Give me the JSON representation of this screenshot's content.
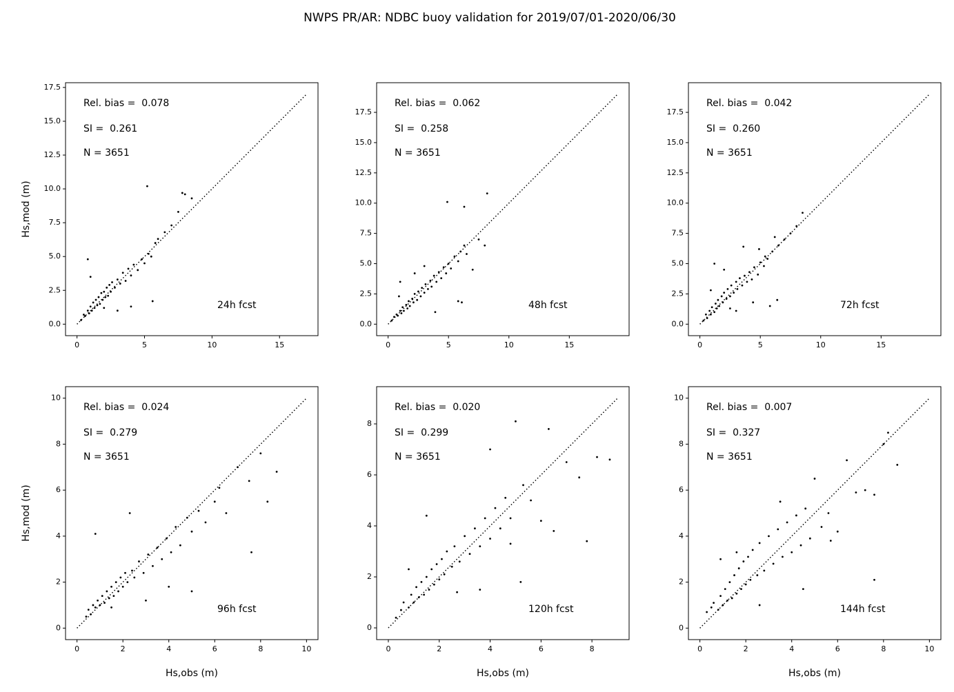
{
  "title": "NWPS PR/AR: NDBC buoy validation for 2019/07/01-2020/06/30",
  "chart_data": [
    {
      "type": "scatter",
      "color": "#000000",
      "ylabel": "Hs,mod (m)",
      "annotations": [
        "Rel. bias =  0.078",
        "SI =  0.261",
        "N = 3651",
        "24h fcst"
      ],
      "xlim": [
        -0.85,
        17.85
      ],
      "ylim": [
        -0.85,
        17.85
      ],
      "xticks": [
        0,
        5,
        10,
        15
      ],
      "yticks": [
        {
          "value": 0,
          "label": "0.0"
        },
        2.5,
        {
          "value": 5,
          "label": "5.0"
        },
        7.5,
        {
          "value": 10,
          "label": "10.0"
        },
        12.5,
        {
          "value": 15,
          "label": "15.0"
        },
        17.5
      ],
      "reference_line": {
        "x": [
          0,
          17
        ],
        "y": [
          0,
          17
        ]
      },
      "x": [
        0.3,
        0.5,
        0.6,
        0.8,
        0.9,
        1.0,
        1.1,
        1.2,
        1.3,
        1.4,
        1.5,
        1.6,
        1.7,
        1.8,
        1.9,
        2.0,
        2.1,
        2.2,
        2.3,
        2.4,
        2.5,
        2.6,
        2.8,
        3.0,
        3.2,
        3.4,
        3.6,
        3.8,
        4.0,
        4.2,
        4.5,
        4.8,
        5.0,
        5.3,
        5.5,
        5.8,
        6.0,
        6.5,
        7.0,
        7.5,
        7.8,
        8.0,
        8.5,
        0.8,
        1.0,
        2.0,
        3.0,
        4.0,
        5.2,
        5.6
      ],
      "y": [
        0.3,
        0.7,
        0.6,
        1.0,
        0.8,
        1.3,
        1.0,
        1.6,
        1.2,
        1.8,
        1.4,
        2.0,
        1.5,
        2.3,
        1.8,
        2.4,
        2.0,
        2.7,
        2.1,
        2.9,
        2.4,
        3.1,
        2.7,
        3.3,
        3.0,
        3.8,
        3.2,
        4.1,
        3.6,
        4.4,
        4.0,
        4.8,
        4.5,
        5.2,
        5.0,
        6.0,
        6.3,
        6.8,
        7.3,
        8.3,
        9.7,
        9.6,
        9.3,
        4.8,
        3.5,
        1.2,
        1.0,
        1.3,
        10.2,
        1.7
      ]
    },
    {
      "type": "scatter",
      "color": "#000000",
      "annotations": [
        "Rel. bias =  0.062",
        "SI =  0.258",
        "N = 3651",
        "48h fcst"
      ],
      "xlim": [
        -0.95,
        19.95
      ],
      "ylim": [
        -0.95,
        19.95
      ],
      "xticks": [
        0,
        5,
        10,
        15
      ],
      "yticks": [
        {
          "value": 0,
          "label": "0.0"
        },
        2.5,
        {
          "value": 5,
          "label": "5.0"
        },
        7.5,
        {
          "value": 10,
          "label": "10.0"
        },
        12.5,
        {
          "value": 15,
          "label": "15.0"
        },
        17.5
      ],
      "reference_line": {
        "x": [
          0,
          19
        ],
        "y": [
          0,
          19
        ]
      },
      "x": [
        0.3,
        0.5,
        0.7,
        0.8,
        1.0,
        1.1,
        1.2,
        1.3,
        1.5,
        1.6,
        1.7,
        1.8,
        2.0,
        2.1,
        2.2,
        2.4,
        2.5,
        2.7,
        2.8,
        3.0,
        3.1,
        3.3,
        3.5,
        3.6,
        3.8,
        4.0,
        4.2,
        4.4,
        4.6,
        4.8,
        5.0,
        5.2,
        5.5,
        5.8,
        6.0,
        6.3,
        6.5,
        7.0,
        7.5,
        8.0,
        4.9,
        6.3,
        8.2,
        1.0,
        2.2,
        3.9,
        5.8,
        6.1,
        0.9,
        3.0
      ],
      "y": [
        0.3,
        0.6,
        0.8,
        0.7,
        1.1,
        0.9,
        1.4,
        1.1,
        1.6,
        1.3,
        1.9,
        1.5,
        2.1,
        1.8,
        2.5,
        2.0,
        2.7,
        2.3,
        3.0,
        2.6,
        3.3,
        2.9,
        3.6,
        3.1,
        4.0,
        3.5,
        4.3,
        3.8,
        4.7,
        4.2,
        5.0,
        4.6,
        5.6,
        5.2,
        6.0,
        6.5,
        5.8,
        4.5,
        7.0,
        6.5,
        10.1,
        9.7,
        10.8,
        3.5,
        4.2,
        1.0,
        1.9,
        1.8,
        2.3,
        4.8
      ]
    },
    {
      "type": "scatter",
      "color": "#000000",
      "annotations": [
        "Rel. bias =  0.042",
        "SI =  0.260",
        "N = 3651",
        "72h fcst"
      ],
      "xlim": [
        -0.95,
        19.95
      ],
      "ylim": [
        -0.95,
        19.95
      ],
      "xticks": [
        0,
        5,
        10,
        15
      ],
      "yticks": [
        {
          "value": 0,
          "label": "0.0"
        },
        2.5,
        {
          "value": 5,
          "label": "5.0"
        },
        7.5,
        {
          "value": 10,
          "label": "10.0"
        },
        12.5,
        {
          "value": 15,
          "label": "15.0"
        },
        17.5
      ],
      "reference_line": {
        "x": [
          0,
          19
        ],
        "y": [
          0,
          19
        ]
      },
      "x": [
        0.3,
        0.5,
        0.6,
        0.8,
        0.9,
        1.0,
        1.2,
        1.3,
        1.4,
        1.5,
        1.6,
        1.8,
        1.9,
        2.0,
        2.2,
        2.3,
        2.5,
        2.6,
        2.8,
        3.0,
        3.1,
        3.3,
        3.5,
        3.7,
        3.9,
        4.1,
        4.3,
        4.5,
        4.8,
        5.0,
        5.3,
        5.6,
        6.0,
        6.5,
        7.0,
        7.5,
        8.0,
        8.5,
        1.2,
        2.0,
        3.0,
        4.4,
        5.8,
        6.2,
        0.9,
        2.5,
        3.6,
        4.9,
        5.4,
        6.4
      ],
      "y": [
        0.3,
        0.8,
        0.5,
        1.1,
        0.8,
        1.4,
        1.0,
        1.7,
        1.3,
        2.0,
        1.5,
        2.3,
        1.8,
        2.6,
        2.1,
        2.9,
        2.3,
        3.2,
        2.6,
        3.5,
        2.9,
        3.8,
        3.2,
        4.0,
        3.5,
        4.3,
        3.7,
        4.7,
        4.1,
        5.1,
        4.8,
        5.4,
        6.0,
        6.5,
        7.0,
        7.5,
        8.1,
        9.2,
        5.0,
        4.5,
        1.1,
        1.8,
        1.5,
        7.2,
        2.8,
        1.3,
        6.4,
        6.2,
        5.6,
        2.0
      ]
    },
    {
      "type": "scatter",
      "color": "#000000",
      "ylabel": "Hs,mod (m)",
      "xlabel": "Hs,obs (m)",
      "annotations": [
        "Rel. bias =  0.024",
        "SI =  0.279",
        "N = 3651",
        "96h fcst"
      ],
      "xlim": [
        -0.5,
        10.5
      ],
      "ylim": [
        -0.5,
        10.5
      ],
      "xticks": [
        0,
        2,
        4,
        6,
        8,
        10
      ],
      "yticks": [
        0,
        2,
        4,
        6,
        8,
        10
      ],
      "reference_line": {
        "x": [
          0,
          10
        ],
        "y": [
          0,
          10
        ]
      },
      "x": [
        0.4,
        0.5,
        0.6,
        0.7,
        0.8,
        0.9,
        1.0,
        1.1,
        1.2,
        1.3,
        1.4,
        1.5,
        1.6,
        1.7,
        1.8,
        1.9,
        2.0,
        2.1,
        2.2,
        2.4,
        2.5,
        2.7,
        2.9,
        3.1,
        3.3,
        3.5,
        3.7,
        3.9,
        4.1,
        4.3,
        4.5,
        4.8,
        5.0,
        5.3,
        5.6,
        6.0,
        6.2,
        6.5,
        7.0,
        7.5,
        8.0,
        8.3,
        8.7,
        0.8,
        1.5,
        2.3,
        3.0,
        4.0,
        5.0,
        7.6
      ],
      "y": [
        0.5,
        0.8,
        0.6,
        1.0,
        0.9,
        1.2,
        1.0,
        1.4,
        1.1,
        1.6,
        1.3,
        1.8,
        1.4,
        2.0,
        1.6,
        2.2,
        1.8,
        2.4,
        2.0,
        2.5,
        2.2,
        2.9,
        2.4,
        3.2,
        2.7,
        3.5,
        3.0,
        3.9,
        3.3,
        4.4,
        3.6,
        4.8,
        4.2,
        5.1,
        4.6,
        5.5,
        6.1,
        5.0,
        7.0,
        6.4,
        7.6,
        5.5,
        6.8,
        4.1,
        0.9,
        5.0,
        1.2,
        1.8,
        1.6,
        3.3
      ]
    },
    {
      "type": "scatter",
      "color": "#000000",
      "xlabel": "Hs,obs (m)",
      "annotations": [
        "Rel. bias =  0.020",
        "SI =  0.299",
        "N = 3651",
        "120h fcst"
      ],
      "xlim": [
        -0.46,
        9.46
      ],
      "ylim": [
        -0.46,
        9.46
      ],
      "xticks": [
        0,
        2,
        4,
        6,
        8
      ],
      "yticks": [
        0,
        2,
        4,
        6,
        8
      ],
      "reference_line": {
        "x": [
          0,
          9
        ],
        "y": [
          0,
          9
        ]
      },
      "x": [
        0.3,
        0.5,
        0.6,
        0.8,
        0.9,
        1.0,
        1.1,
        1.2,
        1.3,
        1.4,
        1.5,
        1.6,
        1.7,
        1.8,
        1.9,
        2.0,
        2.1,
        2.2,
        2.3,
        2.5,
        2.6,
        2.8,
        3.0,
        3.2,
        3.4,
        3.6,
        3.8,
        4.0,
        4.2,
        4.4,
        4.6,
        4.8,
        5.0,
        5.3,
        5.6,
        6.0,
        6.3,
        6.5,
        7.0,
        7.5,
        7.8,
        8.2,
        8.7,
        0.8,
        1.5,
        2.7,
        3.6,
        4.8,
        5.2,
        4.0
      ],
      "y": [
        0.4,
        0.7,
        1.0,
        0.8,
        1.3,
        1.0,
        1.6,
        1.2,
        1.8,
        1.3,
        2.0,
        1.5,
        2.3,
        1.7,
        2.5,
        1.9,
        2.7,
        2.1,
        3.0,
        2.4,
        3.2,
        2.6,
        3.6,
        2.9,
        3.9,
        3.2,
        4.3,
        3.5,
        4.7,
        3.9,
        5.1,
        4.3,
        8.1,
        5.6,
        5.0,
        4.2,
        7.8,
        3.8,
        6.5,
        5.9,
        3.4,
        6.7,
        6.6,
        2.3,
        4.4,
        1.4,
        1.5,
        3.3,
        1.8,
        7.0
      ]
    },
    {
      "type": "scatter",
      "color": "#000000",
      "xlabel": "Hs,obs (m)",
      "annotations": [
        "Rel. bias =  0.007",
        "SI =  0.327",
        "N = 3651",
        "144h fcst"
      ],
      "xlim": [
        -0.5,
        10.5
      ],
      "ylim": [
        -0.5,
        10.5
      ],
      "xticks": [
        0,
        2,
        4,
        6,
        8,
        10
      ],
      "yticks": [
        0,
        2,
        4,
        6,
        8,
        10
      ],
      "reference_line": {
        "x": [
          0,
          10
        ],
        "y": [
          0,
          10
        ]
      },
      "x": [
        0.3,
        0.5,
        0.6,
        0.8,
        0.9,
        1.0,
        1.1,
        1.2,
        1.3,
        1.4,
        1.5,
        1.6,
        1.7,
        1.8,
        1.9,
        2.0,
        2.1,
        2.2,
        2.3,
        2.5,
        2.6,
        2.8,
        3.0,
        3.2,
        3.4,
        3.6,
        3.8,
        4.0,
        4.2,
        4.4,
        4.6,
        4.8,
        5.0,
        5.3,
        5.6,
        6.0,
        6.4,
        6.8,
        7.2,
        7.6,
        8.0,
        8.2,
        8.6,
        0.9,
        1.6,
        2.6,
        3.5,
        4.5,
        5.7,
        7.6
      ],
      "y": [
        0.7,
        0.9,
        1.1,
        0.8,
        1.4,
        1.0,
        1.7,
        1.2,
        2.0,
        1.3,
        2.3,
        1.5,
        2.6,
        1.7,
        2.9,
        1.9,
        3.1,
        2.1,
        3.4,
        2.3,
        3.7,
        2.5,
        4.0,
        2.8,
        4.3,
        3.1,
        4.6,
        3.3,
        4.9,
        3.6,
        5.2,
        3.9,
        6.5,
        4.4,
        5.0,
        4.2,
        7.3,
        5.9,
        6.0,
        5.8,
        8.0,
        8.5,
        7.1,
        3.0,
        3.3,
        1.0,
        5.5,
        1.7,
        3.8,
        2.1
      ]
    }
  ]
}
